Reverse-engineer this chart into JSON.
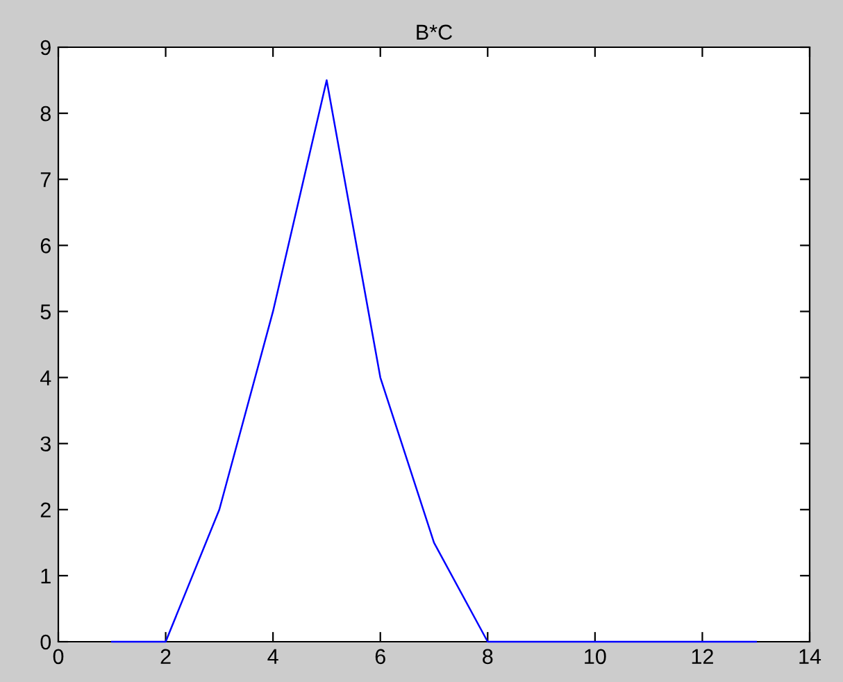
{
  "chart_data": {
    "type": "line",
    "title": "B*C",
    "x": [
      1,
      2,
      3,
      4,
      5,
      6,
      7,
      8,
      9,
      10,
      11,
      12,
      13
    ],
    "series": [
      {
        "color": "#0000ff",
        "values": [
          0,
          0,
          2,
          5,
          8.5,
          4,
          1.5,
          0,
          0,
          0,
          0,
          0,
          0
        ]
      }
    ],
    "xlim": [
      0,
      14
    ],
    "xticks": [
      0,
      2,
      4,
      6,
      8,
      10,
      12,
      14
    ],
    "ylim": [
      0,
      9
    ],
    "yticks": [
      0,
      1,
      2,
      3,
      4,
      5,
      6,
      7,
      8,
      9
    ],
    "grid": false,
    "legend": false,
    "line_style": "solid",
    "marker": "none"
  }
}
